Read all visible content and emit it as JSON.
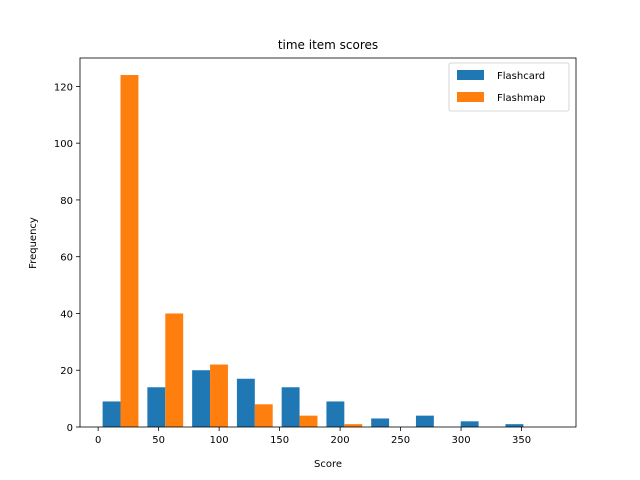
{
  "chart_data": {
    "type": "bar",
    "title": "time item scores",
    "xlabel": "Score",
    "ylabel": "Frequency",
    "xlim": [
      -15,
      395
    ],
    "ylim": [
      0,
      130
    ],
    "xticks": [
      0,
      50,
      100,
      150,
      200,
      250,
      300,
      350
    ],
    "yticks": [
      0,
      20,
      40,
      60,
      80,
      100,
      120
    ],
    "bin_edges": [
      0,
      37,
      74,
      111,
      148,
      185,
      222,
      259,
      296,
      333,
      370
    ],
    "legend_position": "top-right",
    "grid": false,
    "series": [
      {
        "name": "Flashcard",
        "color": "#1f77b4",
        "values": [
          9,
          14,
          20,
          17,
          14,
          9,
          3,
          4,
          2,
          1
        ]
      },
      {
        "name": "Flashmap",
        "color": "#ff7f0e",
        "values": [
          124,
          40,
          22,
          8,
          4,
          1,
          0,
          0,
          0,
          0
        ]
      }
    ]
  }
}
